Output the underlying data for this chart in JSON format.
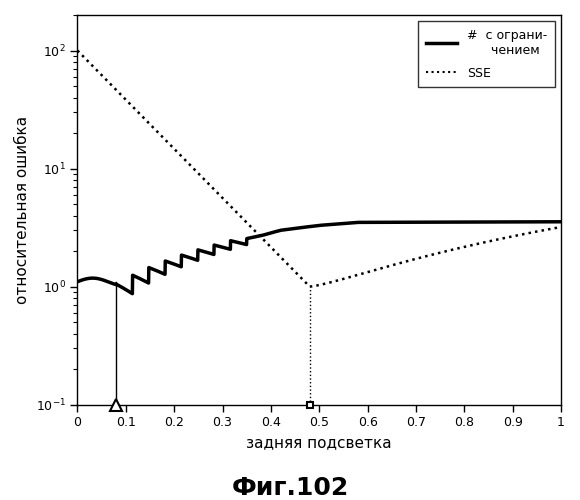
{
  "title": "Фиг.102",
  "xlabel": "задняя подсветка",
  "ylabel": "относительная ошибка",
  "xlim": [
    0,
    1
  ],
  "ylim": [
    0.1,
    200
  ],
  "legend_label_solid": "#  с ограни-\n      чением",
  "legend_label_dotted": "SSE",
  "marker1_x": 0.08,
  "marker2_x": 0.48,
  "background_color": "#ffffff"
}
